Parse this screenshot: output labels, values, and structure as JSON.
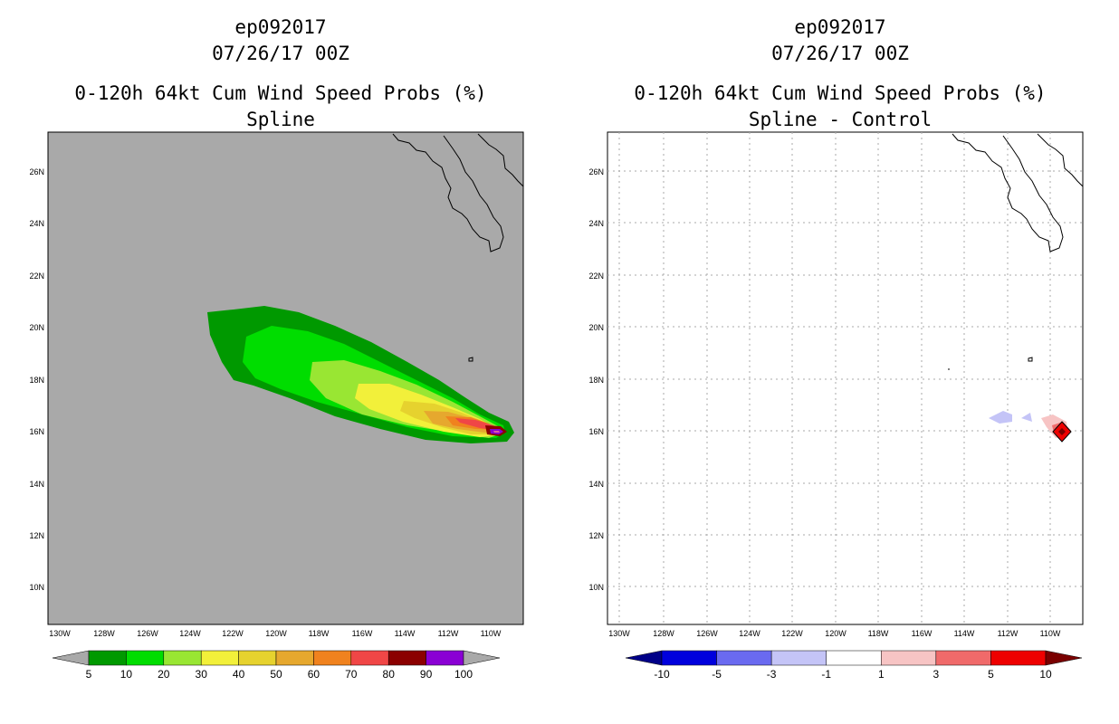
{
  "left": {
    "storm_id": "ep092017",
    "datetime": "07/26/17 00Z",
    "product": "0-120h 64kt Cum Wind Speed Probs (%)",
    "subtitle": "Spline",
    "background": "#a9a9a9",
    "lat_labels": [
      "26N",
      "24N",
      "22N",
      "20N",
      "18N",
      "16N",
      "14N",
      "12N",
      "10N"
    ],
    "lon_labels": [
      "130W",
      "128W",
      "126W",
      "124W",
      "122W",
      "120W",
      "118W",
      "116W",
      "114W",
      "112W",
      "110W"
    ],
    "colorbar": {
      "colors": [
        "#009900",
        "#00dd00",
        "#99e633",
        "#f2f03a",
        "#e6d22e",
        "#e6a82e",
        "#f0821e",
        "#f04646",
        "#8b0000",
        "#8a00d4"
      ],
      "ticks": [
        "5",
        "10",
        "20",
        "30",
        "40",
        "50",
        "60",
        "70",
        "80",
        "90",
        "100"
      ],
      "under_color": "#a9a9a9",
      "over_color": "#a9a9a9"
    }
  },
  "right": {
    "storm_id": "ep092017",
    "datetime": "07/26/17 00Z",
    "product": "0-120h 64kt Cum Wind Speed Probs (%)",
    "subtitle": "Spline - Control",
    "background": "#ffffff",
    "lat_labels": [
      "26N",
      "24N",
      "22N",
      "20N",
      "18N",
      "16N",
      "14N",
      "12N",
      "10N"
    ],
    "lon_labels": [
      "130W",
      "128W",
      "126W",
      "124W",
      "122W",
      "120W",
      "118W",
      "116W",
      "114W",
      "112W",
      "110W"
    ],
    "colorbar": {
      "colors": [
        "#0000dd",
        "#6a6af0",
        "#c4c4f7",
        "#ffffff",
        "#f7c4c4",
        "#f06a6a",
        "#ee0000"
      ],
      "ticks": [
        "-10",
        "-5",
        "-3",
        "-1",
        "1",
        "3",
        "5",
        "10"
      ],
      "under_color": "#000088",
      "over_color": "#7a0000"
    }
  }
}
